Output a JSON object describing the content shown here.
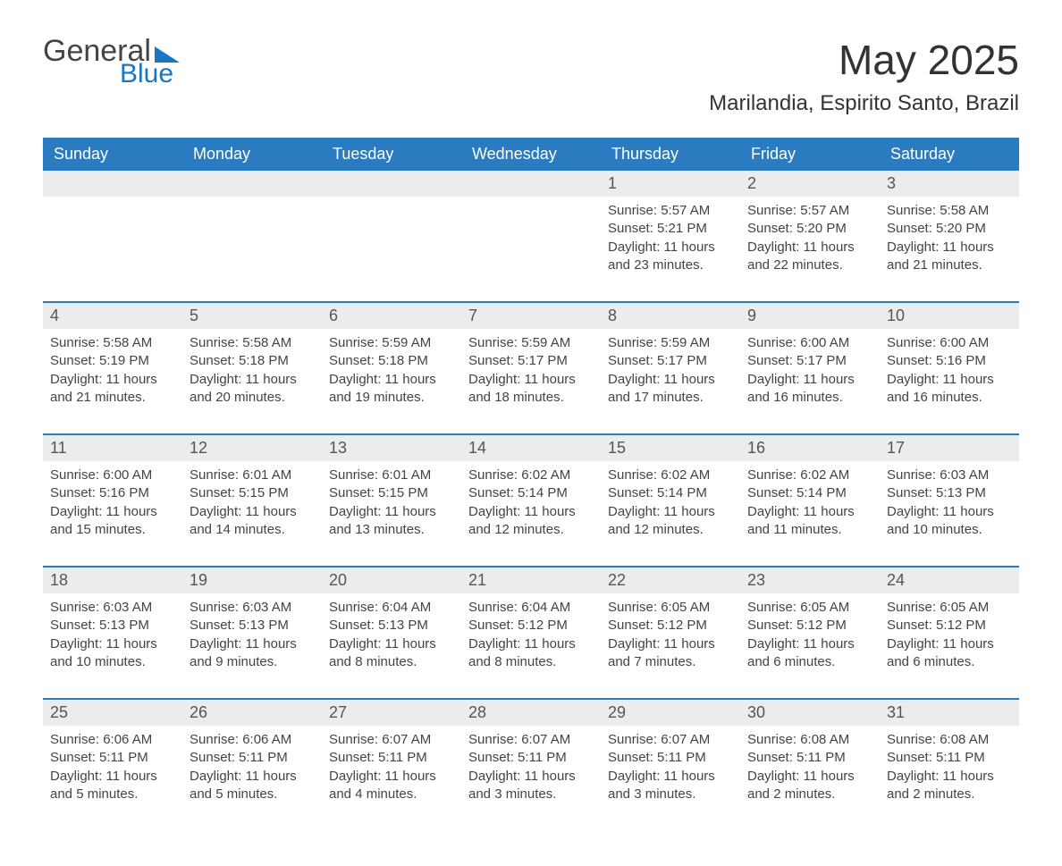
{
  "logo": {
    "text_general": "General",
    "text_blue": "Blue"
  },
  "title": "May 2025",
  "location": "Marilandia, Espirito Santo, Brazil",
  "colors": {
    "header_bg": "#2a7bbf",
    "header_text": "#ffffff",
    "daynum_bg": "#ececec",
    "row_divider": "#2a7bbf",
    "logo_accent": "#1976c1",
    "body_text": "#444444",
    "page_bg": "#ffffff"
  },
  "weekdays": [
    "Sunday",
    "Monday",
    "Tuesday",
    "Wednesday",
    "Thursday",
    "Friday",
    "Saturday"
  ],
  "weeks": [
    [
      {
        "day": "",
        "sunrise": "",
        "sunset": "",
        "daylight": ""
      },
      {
        "day": "",
        "sunrise": "",
        "sunset": "",
        "daylight": ""
      },
      {
        "day": "",
        "sunrise": "",
        "sunset": "",
        "daylight": ""
      },
      {
        "day": "",
        "sunrise": "",
        "sunset": "",
        "daylight": ""
      },
      {
        "day": "1",
        "sunrise": "Sunrise: 5:57 AM",
        "sunset": "Sunset: 5:21 PM",
        "daylight": "Daylight: 11 hours and 23 minutes."
      },
      {
        "day": "2",
        "sunrise": "Sunrise: 5:57 AM",
        "sunset": "Sunset: 5:20 PM",
        "daylight": "Daylight: 11 hours and 22 minutes."
      },
      {
        "day": "3",
        "sunrise": "Sunrise: 5:58 AM",
        "sunset": "Sunset: 5:20 PM",
        "daylight": "Daylight: 11 hours and 21 minutes."
      }
    ],
    [
      {
        "day": "4",
        "sunrise": "Sunrise: 5:58 AM",
        "sunset": "Sunset: 5:19 PM",
        "daylight": "Daylight: 11 hours and 21 minutes."
      },
      {
        "day": "5",
        "sunrise": "Sunrise: 5:58 AM",
        "sunset": "Sunset: 5:18 PM",
        "daylight": "Daylight: 11 hours and 20 minutes."
      },
      {
        "day": "6",
        "sunrise": "Sunrise: 5:59 AM",
        "sunset": "Sunset: 5:18 PM",
        "daylight": "Daylight: 11 hours and 19 minutes."
      },
      {
        "day": "7",
        "sunrise": "Sunrise: 5:59 AM",
        "sunset": "Sunset: 5:17 PM",
        "daylight": "Daylight: 11 hours and 18 minutes."
      },
      {
        "day": "8",
        "sunrise": "Sunrise: 5:59 AM",
        "sunset": "Sunset: 5:17 PM",
        "daylight": "Daylight: 11 hours and 17 minutes."
      },
      {
        "day": "9",
        "sunrise": "Sunrise: 6:00 AM",
        "sunset": "Sunset: 5:17 PM",
        "daylight": "Daylight: 11 hours and 16 minutes."
      },
      {
        "day": "10",
        "sunrise": "Sunrise: 6:00 AM",
        "sunset": "Sunset: 5:16 PM",
        "daylight": "Daylight: 11 hours and 16 minutes."
      }
    ],
    [
      {
        "day": "11",
        "sunrise": "Sunrise: 6:00 AM",
        "sunset": "Sunset: 5:16 PM",
        "daylight": "Daylight: 11 hours and 15 minutes."
      },
      {
        "day": "12",
        "sunrise": "Sunrise: 6:01 AM",
        "sunset": "Sunset: 5:15 PM",
        "daylight": "Daylight: 11 hours and 14 minutes."
      },
      {
        "day": "13",
        "sunrise": "Sunrise: 6:01 AM",
        "sunset": "Sunset: 5:15 PM",
        "daylight": "Daylight: 11 hours and 13 minutes."
      },
      {
        "day": "14",
        "sunrise": "Sunrise: 6:02 AM",
        "sunset": "Sunset: 5:14 PM",
        "daylight": "Daylight: 11 hours and 12 minutes."
      },
      {
        "day": "15",
        "sunrise": "Sunrise: 6:02 AM",
        "sunset": "Sunset: 5:14 PM",
        "daylight": "Daylight: 11 hours and 12 minutes."
      },
      {
        "day": "16",
        "sunrise": "Sunrise: 6:02 AM",
        "sunset": "Sunset: 5:14 PM",
        "daylight": "Daylight: 11 hours and 11 minutes."
      },
      {
        "day": "17",
        "sunrise": "Sunrise: 6:03 AM",
        "sunset": "Sunset: 5:13 PM",
        "daylight": "Daylight: 11 hours and 10 minutes."
      }
    ],
    [
      {
        "day": "18",
        "sunrise": "Sunrise: 6:03 AM",
        "sunset": "Sunset: 5:13 PM",
        "daylight": "Daylight: 11 hours and 10 minutes."
      },
      {
        "day": "19",
        "sunrise": "Sunrise: 6:03 AM",
        "sunset": "Sunset: 5:13 PM",
        "daylight": "Daylight: 11 hours and 9 minutes."
      },
      {
        "day": "20",
        "sunrise": "Sunrise: 6:04 AM",
        "sunset": "Sunset: 5:13 PM",
        "daylight": "Daylight: 11 hours and 8 minutes."
      },
      {
        "day": "21",
        "sunrise": "Sunrise: 6:04 AM",
        "sunset": "Sunset: 5:12 PM",
        "daylight": "Daylight: 11 hours and 8 minutes."
      },
      {
        "day": "22",
        "sunrise": "Sunrise: 6:05 AM",
        "sunset": "Sunset: 5:12 PM",
        "daylight": "Daylight: 11 hours and 7 minutes."
      },
      {
        "day": "23",
        "sunrise": "Sunrise: 6:05 AM",
        "sunset": "Sunset: 5:12 PM",
        "daylight": "Daylight: 11 hours and 6 minutes."
      },
      {
        "day": "24",
        "sunrise": "Sunrise: 6:05 AM",
        "sunset": "Sunset: 5:12 PM",
        "daylight": "Daylight: 11 hours and 6 minutes."
      }
    ],
    [
      {
        "day": "25",
        "sunrise": "Sunrise: 6:06 AM",
        "sunset": "Sunset: 5:11 PM",
        "daylight": "Daylight: 11 hours and 5 minutes."
      },
      {
        "day": "26",
        "sunrise": "Sunrise: 6:06 AM",
        "sunset": "Sunset: 5:11 PM",
        "daylight": "Daylight: 11 hours and 5 minutes."
      },
      {
        "day": "27",
        "sunrise": "Sunrise: 6:07 AM",
        "sunset": "Sunset: 5:11 PM",
        "daylight": "Daylight: 11 hours and 4 minutes."
      },
      {
        "day": "28",
        "sunrise": "Sunrise: 6:07 AM",
        "sunset": "Sunset: 5:11 PM",
        "daylight": "Daylight: 11 hours and 3 minutes."
      },
      {
        "day": "29",
        "sunrise": "Sunrise: 6:07 AM",
        "sunset": "Sunset: 5:11 PM",
        "daylight": "Daylight: 11 hours and 3 minutes."
      },
      {
        "day": "30",
        "sunrise": "Sunrise: 6:08 AM",
        "sunset": "Sunset: 5:11 PM",
        "daylight": "Daylight: 11 hours and 2 minutes."
      },
      {
        "day": "31",
        "sunrise": "Sunrise: 6:08 AM",
        "sunset": "Sunset: 5:11 PM",
        "daylight": "Daylight: 11 hours and 2 minutes."
      }
    ]
  ]
}
